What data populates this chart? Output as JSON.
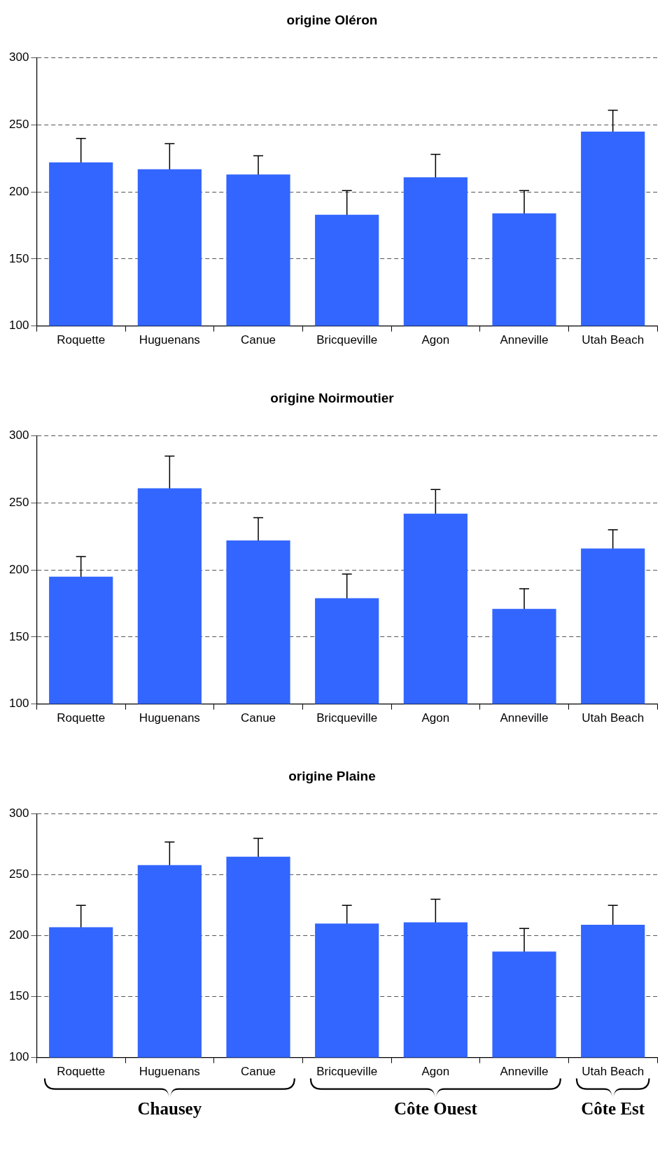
{
  "chart_data": [
    {
      "type": "bar",
      "title": "origine Oléron",
      "categories": [
        "Roquette",
        "Huguenans",
        "Canue",
        "Bricqueville",
        "Agon",
        "Anneville",
        "Utah Beach"
      ],
      "color": "#3366ff",
      "values": [
        222,
        217,
        213,
        183,
        211,
        184,
        245
      ],
      "errors": [
        18,
        19,
        14,
        18,
        17,
        17,
        16
      ],
      "ylim": [
        100,
        300
      ],
      "yticks": [
        100,
        150,
        200,
        250,
        300
      ],
      "grid": "y"
    },
    {
      "type": "bar",
      "title": "origine Noirmoutier",
      "categories": [
        "Roquette",
        "Huguenans",
        "Canue",
        "Bricqueville",
        "Agon",
        "Anneville",
        "Utah Beach"
      ],
      "color": "#3366ff",
      "values": [
        195,
        261,
        222,
        179,
        242,
        171,
        216
      ],
      "errors": [
        15,
        24,
        17,
        18,
        18,
        15,
        14
      ],
      "ylim": [
        100,
        300
      ],
      "yticks": [
        100,
        150,
        200,
        250,
        300
      ],
      "grid": "y"
    },
    {
      "type": "bar",
      "title": "origine Plaine",
      "categories": [
        "Roquette",
        "Huguenans",
        "Canue",
        "Bricqueville",
        "Agon",
        "Anneville",
        "Utah Beach"
      ],
      "color": "#3366ff",
      "values": [
        207,
        258,
        265,
        210,
        211,
        187,
        209
      ],
      "errors": [
        18,
        19,
        15,
        15,
        19,
        19,
        16
      ],
      "ylim": [
        100,
        300
      ],
      "yticks": [
        100,
        150,
        200,
        250,
        300
      ],
      "grid": "y",
      "annotations": [
        "Chausey",
        "Côte Ouest",
        "Côte Est"
      ]
    }
  ]
}
